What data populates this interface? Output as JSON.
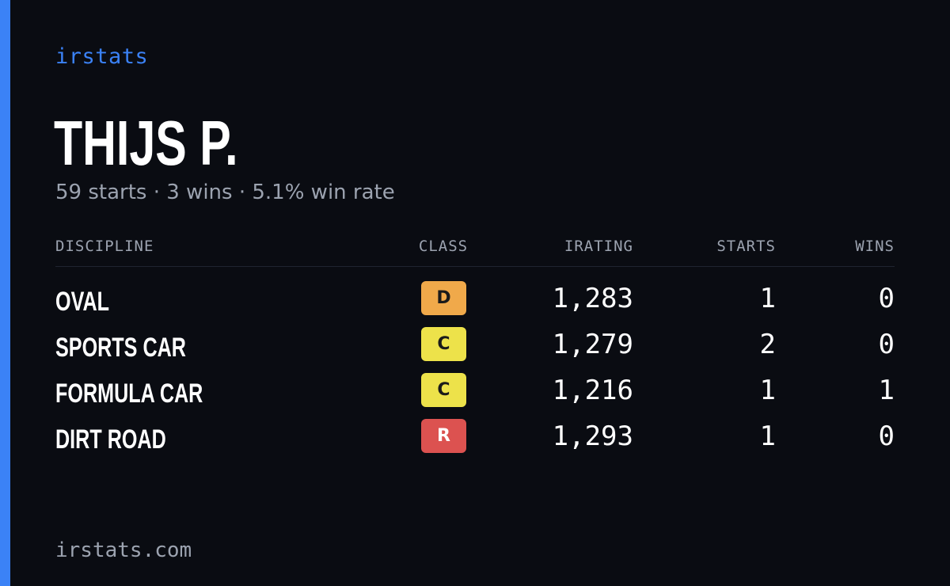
{
  "brand": "irstats",
  "driver": {
    "name": "THIJS P.",
    "summary": "59 starts · 3 wins · 5.1% win rate"
  },
  "table": {
    "headers": {
      "discipline": "DISCIPLINE",
      "class": "CLASS",
      "irating": "IRATING",
      "starts": "STARTS",
      "wins": "WINS"
    },
    "rows": [
      {
        "discipline": "OVAL",
        "class": "D",
        "class_color": "#f0a94a",
        "irating": "1,283",
        "starts": "1",
        "wins": "0"
      },
      {
        "discipline": "SPORTS CAR",
        "class": "C",
        "class_color": "#ede24a",
        "irating": "1,279",
        "starts": "2",
        "wins": "0"
      },
      {
        "discipline": "FORMULA CAR",
        "class": "C",
        "class_color": "#ede24a",
        "irating": "1,216",
        "starts": "1",
        "wins": "1"
      },
      {
        "discipline": "DIRT ROAD",
        "class": "R",
        "class_color": "#dc5250",
        "irating": "1,293",
        "starts": "1",
        "wins": "0"
      }
    ]
  },
  "footer": "irstats.com",
  "colors": {
    "accent": "#3b82f6",
    "background": "#0a0c12",
    "muted_text": "#9ca3b0"
  }
}
